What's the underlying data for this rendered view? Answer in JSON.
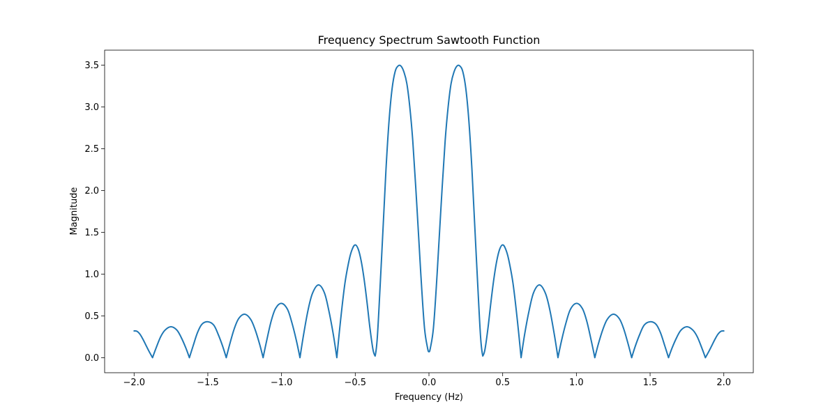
{
  "chart_data": {
    "type": "line",
    "title": "Frequency Spectrum Sawtooth Function",
    "xlabel": "Frequency (Hz)",
    "ylabel": "Magnitude",
    "xlim": [
      -2.2,
      2.2
    ],
    "ylim": [
      -0.18,
      3.68
    ],
    "xticks": [
      -2.0,
      -1.5,
      -1.0,
      -0.5,
      0.0,
      0.5,
      1.0,
      1.5,
      2.0
    ],
    "xtick_labels": [
      "−2.0",
      "−1.5",
      "−1.0",
      "−0.5",
      "0.0",
      "0.5",
      "1.0",
      "1.5",
      "2.0"
    ],
    "yticks": [
      0.0,
      0.5,
      1.0,
      1.5,
      2.0,
      2.5,
      3.0,
      3.5
    ],
    "ytick_labels": [
      "0.0",
      "0.5",
      "1.0",
      "1.5",
      "2.0",
      "2.5",
      "3.0",
      "3.5"
    ],
    "grid": false,
    "series": [
      {
        "color": "#1f77b4",
        "x": [
          -2.0,
          -1.98,
          -1.96,
          -1.94,
          -1.92,
          -1.9,
          -1.875,
          -1.85,
          -1.82,
          -1.79,
          -1.75,
          -1.71,
          -1.68,
          -1.65,
          -1.625,
          -1.6,
          -1.57,
          -1.54,
          -1.5,
          -1.46,
          -1.43,
          -1.4,
          -1.375,
          -1.35,
          -1.32,
          -1.29,
          -1.25,
          -1.21,
          -1.18,
          -1.15,
          -1.125,
          -1.1,
          -1.07,
          -1.04,
          -1.0,
          -0.96,
          -0.93,
          -0.9,
          -0.875,
          -0.85,
          -0.82,
          -0.79,
          -0.75,
          -0.71,
          -0.68,
          -0.65,
          -0.625,
          -0.6,
          -0.57,
          -0.54,
          -0.52,
          -0.5,
          -0.48,
          -0.46,
          -0.44,
          -0.42,
          -0.4,
          -0.38,
          -0.365,
          -0.35,
          -0.33,
          -0.31,
          -0.29,
          -0.27,
          -0.25,
          -0.23,
          -0.21,
          -0.19,
          -0.17,
          -0.15,
          -0.13,
          -0.11,
          -0.09,
          -0.07,
          -0.05,
          -0.03,
          -0.01,
          0.0,
          0.01,
          0.03,
          0.05,
          0.07,
          0.09,
          0.11,
          0.13,
          0.15,
          0.17,
          0.19,
          0.21,
          0.23,
          0.25,
          0.27,
          0.29,
          0.31,
          0.33,
          0.35,
          0.365,
          0.38,
          0.4,
          0.42,
          0.44,
          0.46,
          0.48,
          0.5,
          0.52,
          0.54,
          0.57,
          0.6,
          0.625,
          0.65,
          0.68,
          0.71,
          0.75,
          0.79,
          0.82,
          0.85,
          0.875,
          0.9,
          0.93,
          0.96,
          1.0,
          1.04,
          1.07,
          1.1,
          1.125,
          1.15,
          1.18,
          1.21,
          1.25,
          1.29,
          1.32,
          1.35,
          1.375,
          1.4,
          1.43,
          1.46,
          1.5,
          1.54,
          1.57,
          1.6,
          1.625,
          1.65,
          1.68,
          1.71,
          1.75,
          1.79,
          1.82,
          1.85,
          1.875,
          1.9,
          1.92,
          1.94,
          1.96,
          1.98,
          2.0
        ],
        "y": [
          0.32,
          0.315,
          0.28,
          0.22,
          0.15,
          0.08,
          0.0,
          0.12,
          0.25,
          0.33,
          0.37,
          0.33,
          0.24,
          0.12,
          0.0,
          0.14,
          0.3,
          0.4,
          0.43,
          0.39,
          0.28,
          0.14,
          0.0,
          0.17,
          0.35,
          0.47,
          0.52,
          0.46,
          0.34,
          0.17,
          0.0,
          0.21,
          0.44,
          0.59,
          0.65,
          0.58,
          0.42,
          0.21,
          0.0,
          0.28,
          0.57,
          0.77,
          0.87,
          0.78,
          0.57,
          0.29,
          0.0,
          0.44,
          0.89,
          1.18,
          1.3,
          1.35,
          1.3,
          1.16,
          0.94,
          0.66,
          0.35,
          0.1,
          0.02,
          0.25,
          0.9,
          1.6,
          2.3,
          2.85,
          3.22,
          3.42,
          3.49,
          3.49,
          3.42,
          3.28,
          3.0,
          2.6,
          2.05,
          1.45,
          0.85,
          0.35,
          0.12,
          0.07,
          0.12,
          0.35,
          0.85,
          1.45,
          2.05,
          2.6,
          3.0,
          3.28,
          3.42,
          3.49,
          3.49,
          3.42,
          3.22,
          2.85,
          2.3,
          1.6,
          0.9,
          0.25,
          0.02,
          0.1,
          0.35,
          0.66,
          0.94,
          1.16,
          1.3,
          1.35,
          1.3,
          1.18,
          0.89,
          0.44,
          0.0,
          0.29,
          0.57,
          0.78,
          0.87,
          0.77,
          0.57,
          0.28,
          0.0,
          0.21,
          0.42,
          0.58,
          0.65,
          0.59,
          0.44,
          0.21,
          0.0,
          0.17,
          0.34,
          0.46,
          0.52,
          0.47,
          0.35,
          0.17,
          0.0,
          0.14,
          0.28,
          0.39,
          0.43,
          0.4,
          0.3,
          0.14,
          0.0,
          0.12,
          0.24,
          0.33,
          0.37,
          0.33,
          0.25,
          0.12,
          0.0,
          0.08,
          0.15,
          0.22,
          0.28,
          0.315,
          0.32
        ]
      }
    ]
  }
}
